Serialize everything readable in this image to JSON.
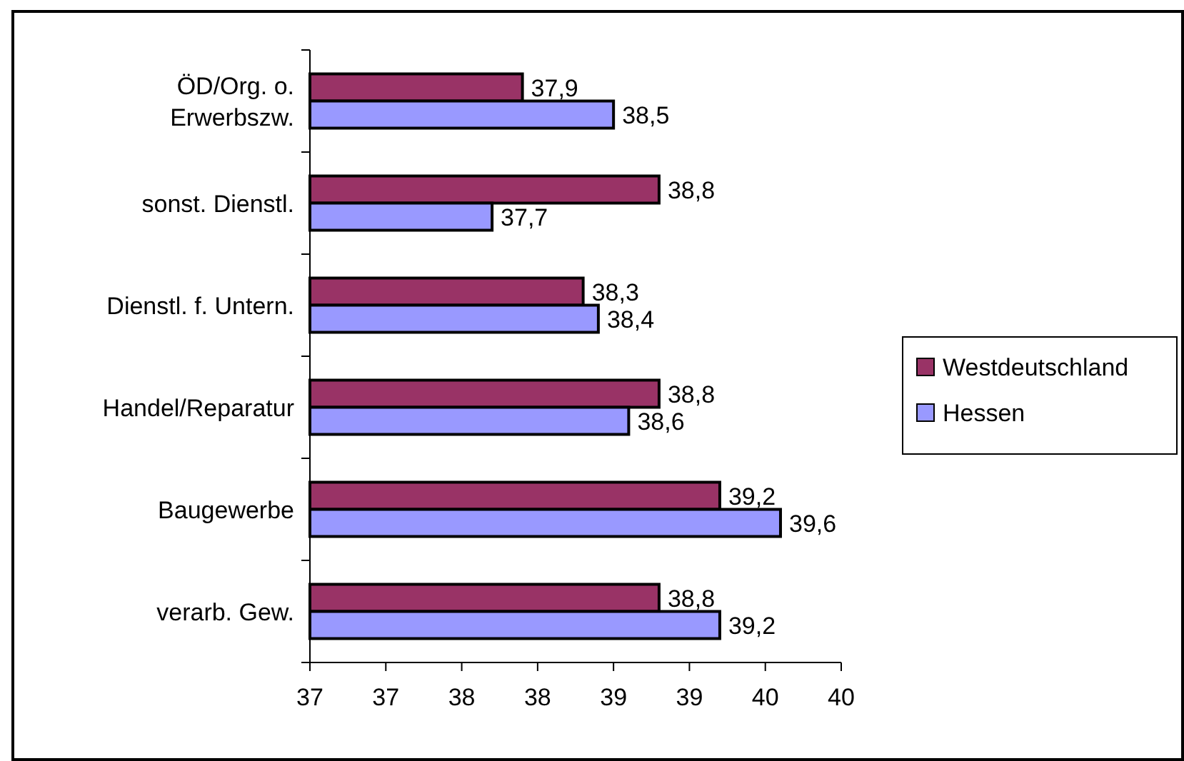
{
  "chart_data": {
    "type": "bar",
    "orientation": "horizontal",
    "categories": [
      "ÖD/Org. o. Erwerbszw.",
      "sonst. Dienstl.",
      "Dienstl. f. Untern.",
      "Handel/Reparatur",
      "Baugewerbe",
      "verarb. Gew."
    ],
    "series": [
      {
        "name": "Westdeutschland",
        "color": "#993366",
        "values": [
          37.9,
          38.8,
          38.3,
          38.8,
          39.2,
          38.8
        ],
        "value_labels": [
          "37,9",
          "38,8",
          "38,3",
          "38,8",
          "39,2",
          "38,8"
        ]
      },
      {
        "name": "Hessen",
        "color": "#9999ff",
        "values": [
          38.5,
          37.7,
          38.4,
          38.6,
          39.6,
          39.2
        ],
        "value_labels": [
          "38,5",
          "37,7",
          "38,4",
          "38,6",
          "39,6",
          "39,2"
        ]
      }
    ],
    "xlim": [
      36.5,
      40
    ],
    "xticks": [
      {
        "value": 36.5,
        "label": "37"
      },
      {
        "value": 37,
        "label": "37"
      },
      {
        "value": 37.5,
        "label": "38"
      },
      {
        "value": 38,
        "label": "38"
      },
      {
        "value": 38.5,
        "label": "39"
      },
      {
        "value": 39,
        "label": "39"
      },
      {
        "value": 39.5,
        "label": "40"
      },
      {
        "value": 40,
        "label": "40"
      }
    ],
    "grid": false,
    "legend": "right"
  }
}
